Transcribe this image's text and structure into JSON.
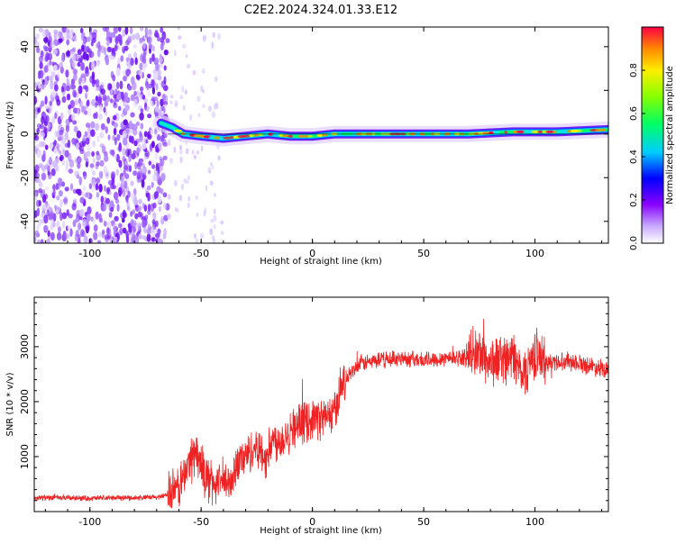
{
  "title": "C2E2.2024.324.01.33.E12",
  "colors": {
    "snr_line": "#ee2222",
    "frame": "#000000"
  },
  "chart_data": [
    {
      "type": "heatmap",
      "xlabel": "Height of straight line (km)",
      "ylabel": "Frequency (Hz)",
      "xlim": [
        -125,
        133
      ],
      "ylim": [
        -50,
        49
      ],
      "xticks": [
        -100,
        -50,
        0,
        50,
        100
      ],
      "xtick_labels": [
        "-100",
        "-50",
        "0",
        "50",
        "100"
      ],
      "yticks": [
        -40,
        -20,
        0,
        20,
        40
      ],
      "ytick_labels": [
        "-40",
        "-20",
        "0",
        "20",
        "40"
      ],
      "colorbar": {
        "label": "Normalized spectral amplitude",
        "range": [
          0,
          1
        ],
        "ticks": [
          0.0,
          0.2,
          0.4,
          0.6,
          0.8
        ],
        "tick_labels": [
          "0.0",
          "0.2",
          "0.4",
          "0.6",
          "0.8"
        ]
      },
      "description_points": {
        "noise_region_x": [
          -125,
          -65
        ],
        "sparse_region_x": [
          -65,
          -40
        ],
        "ridge": [
          {
            "x": -68,
            "y": 5
          },
          {
            "x": -63,
            "y": 3
          },
          {
            "x": -58,
            "y": 0
          },
          {
            "x": -50,
            "y": -1
          },
          {
            "x": -40,
            "y": -2
          },
          {
            "x": -30,
            "y": -1
          },
          {
            "x": -20,
            "y": 0
          },
          {
            "x": -10,
            "y": -1
          },
          {
            "x": 0,
            "y": -1
          },
          {
            "x": 10,
            "y": 0
          },
          {
            "x": 30,
            "y": 0
          },
          {
            "x": 50,
            "y": 0
          },
          {
            "x": 70,
            "y": 0
          },
          {
            "x": 90,
            "y": 1
          },
          {
            "x": 110,
            "y": 1
          },
          {
            "x": 133,
            "y": 2
          }
        ]
      }
    },
    {
      "type": "line",
      "xlabel": "Height of straight line (km)",
      "ylabel": "SNR (10 * v/v)",
      "xlim": [
        -125,
        133
      ],
      "ylim": [
        0,
        3900
      ],
      "xticks": [
        -100,
        -50,
        0,
        50,
        100
      ],
      "xtick_labels": [
        "-100",
        "-50",
        "0",
        "50",
        "100"
      ],
      "yticks": [
        1000,
        2000,
        3000
      ],
      "ytick_labels": [
        "1000",
        "2000",
        "3000"
      ],
      "series": [
        {
          "values": [
            {
              "x": -125,
              "y": 250
            },
            {
              "x": -110,
              "y": 250
            },
            {
              "x": -100,
              "y": 240
            },
            {
              "x": -90,
              "y": 250
            },
            {
              "x": -80,
              "y": 250
            },
            {
              "x": -70,
              "y": 260
            },
            {
              "x": -62,
              "y": 350
            },
            {
              "x": -58,
              "y": 600
            },
            {
              "x": -55,
              "y": 950
            },
            {
              "x": -52,
              "y": 1100
            },
            {
              "x": -50,
              "y": 800
            },
            {
              "x": -47,
              "y": 600
            },
            {
              "x": -44,
              "y": 500
            },
            {
              "x": -40,
              "y": 550
            },
            {
              "x": -37,
              "y": 450
            },
            {
              "x": -34,
              "y": 900
            },
            {
              "x": -30,
              "y": 1000
            },
            {
              "x": -25,
              "y": 1200
            },
            {
              "x": -21,
              "y": 950
            },
            {
              "x": -18,
              "y": 1300
            },
            {
              "x": -14,
              "y": 1300
            },
            {
              "x": -10,
              "y": 1500
            },
            {
              "x": -5,
              "y": 1600
            },
            {
              "x": 0,
              "y": 1700
            },
            {
              "x": 5,
              "y": 1700
            },
            {
              "x": 10,
              "y": 1800
            },
            {
              "x": 13,
              "y": 2300
            },
            {
              "x": 17,
              "y": 2500
            },
            {
              "x": 22,
              "y": 2700
            },
            {
              "x": 30,
              "y": 2750
            },
            {
              "x": 40,
              "y": 2800
            },
            {
              "x": 50,
              "y": 2750
            },
            {
              "x": 60,
              "y": 2800
            },
            {
              "x": 70,
              "y": 2800
            },
            {
              "x": 75,
              "y": 2900
            },
            {
              "x": 80,
              "y": 2700
            },
            {
              "x": 85,
              "y": 2800
            },
            {
              "x": 90,
              "y": 2800
            },
            {
              "x": 95,
              "y": 2500
            },
            {
              "x": 100,
              "y": 2900
            },
            {
              "x": 105,
              "y": 2700
            },
            {
              "x": 115,
              "y": 2750
            },
            {
              "x": 125,
              "y": 2650
            },
            {
              "x": 133,
              "y": 2600
            }
          ]
        }
      ]
    }
  ]
}
